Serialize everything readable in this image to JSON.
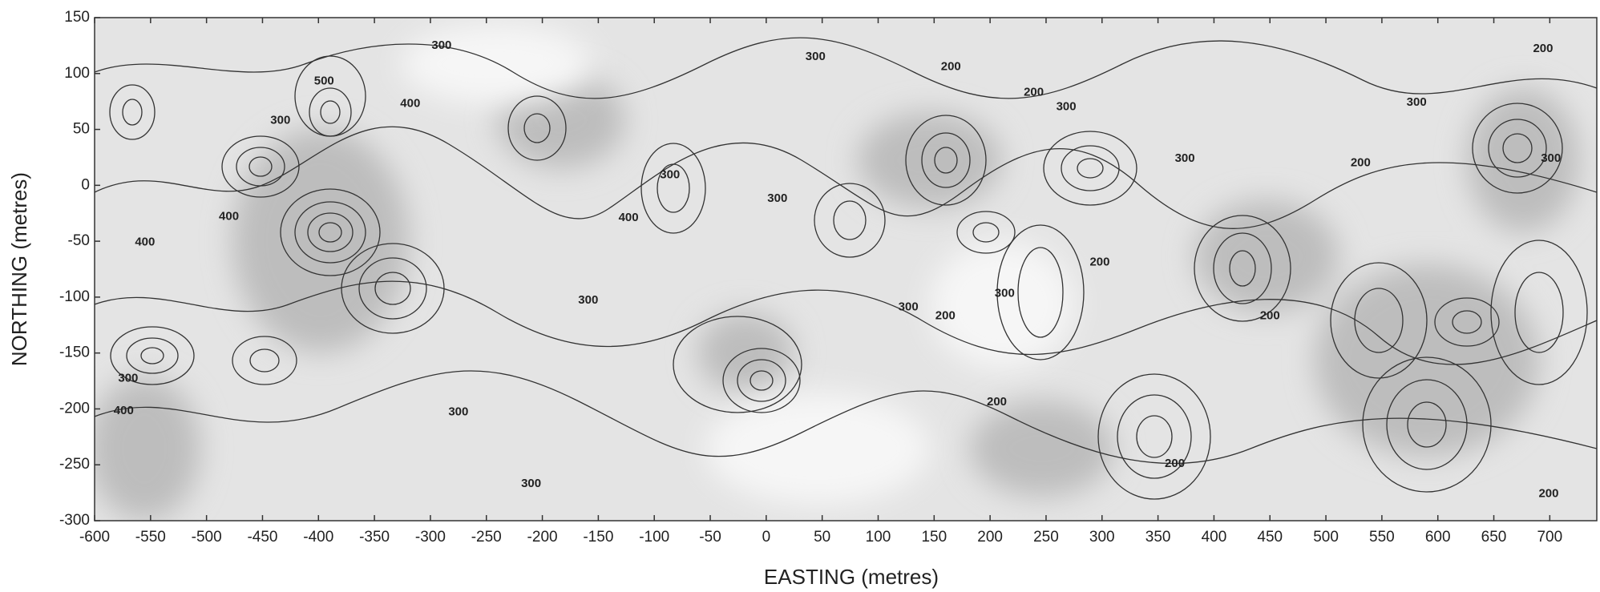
{
  "chart_data": {
    "type": "contour",
    "x_label": "EASTING (metres)",
    "y_label": "NORTHING (metres)",
    "xlim": [
      -600,
      742
    ],
    "ylim": [
      -300,
      150
    ],
    "xticks": [
      -600,
      -550,
      -500,
      -450,
      -400,
      -350,
      -300,
      -250,
      -200,
      -150,
      -100,
      -50,
      0,
      50,
      100,
      150,
      200,
      250,
      300,
      350,
      400,
      450,
      500,
      550,
      600,
      650,
      700
    ],
    "yticks": [
      -300,
      -250,
      -200,
      -150,
      -100,
      -50,
      0,
      50,
      100,
      150
    ],
    "line_color": "#333333",
    "contour_labels": [
      {
        "label": "300",
        "x": -290,
        "y": 125
      },
      {
        "label": "400",
        "x": -318,
        "y": 73
      },
      {
        "label": "500",
        "x": -395,
        "y": 93
      },
      {
        "label": "300",
        "x": -434,
        "y": 58
      },
      {
        "label": "400",
        "x": -480,
        "y": -28
      },
      {
        "label": "400",
        "x": -555,
        "y": -51
      },
      {
        "label": "300",
        "x": -570,
        "y": -173
      },
      {
        "label": "400",
        "x": -574,
        "y": -202
      },
      {
        "label": "300",
        "x": -275,
        "y": -203
      },
      {
        "label": "300",
        "x": -210,
        "y": -267
      },
      {
        "label": "300",
        "x": -159,
        "y": -103
      },
      {
        "label": "400",
        "x": -123,
        "y": -29
      },
      {
        "label": "300",
        "x": -86,
        "y": 9
      },
      {
        "label": "300",
        "x": 10,
        "y": -12
      },
      {
        "label": "300",
        "x": 44,
        "y": 115
      },
      {
        "label": "300",
        "x": 127,
        "y": -109
      },
      {
        "label": "200",
        "x": 160,
        "y": -117
      },
      {
        "label": "200",
        "x": 165,
        "y": 106
      },
      {
        "label": "300",
        "x": 213,
        "y": -97
      },
      {
        "label": "200",
        "x": 206,
        "y": -194
      },
      {
        "label": "200",
        "x": 239,
        "y": 83
      },
      {
        "label": "300",
        "x": 268,
        "y": 70
      },
      {
        "label": "200",
        "x": 298,
        "y": -69
      },
      {
        "label": "200",
        "x": 365,
        "y": -249
      },
      {
        "label": "300",
        "x": 374,
        "y": 24
      },
      {
        "label": "200",
        "x": 450,
        "y": -117
      },
      {
        "label": "200",
        "x": 531,
        "y": 20
      },
      {
        "label": "300",
        "x": 581,
        "y": 74
      },
      {
        "label": "200",
        "x": 694,
        "y": 122
      },
      {
        "label": "300",
        "x": 701,
        "y": 24
      },
      {
        "label": "200",
        "x": 699,
        "y": -276
      }
    ]
  }
}
